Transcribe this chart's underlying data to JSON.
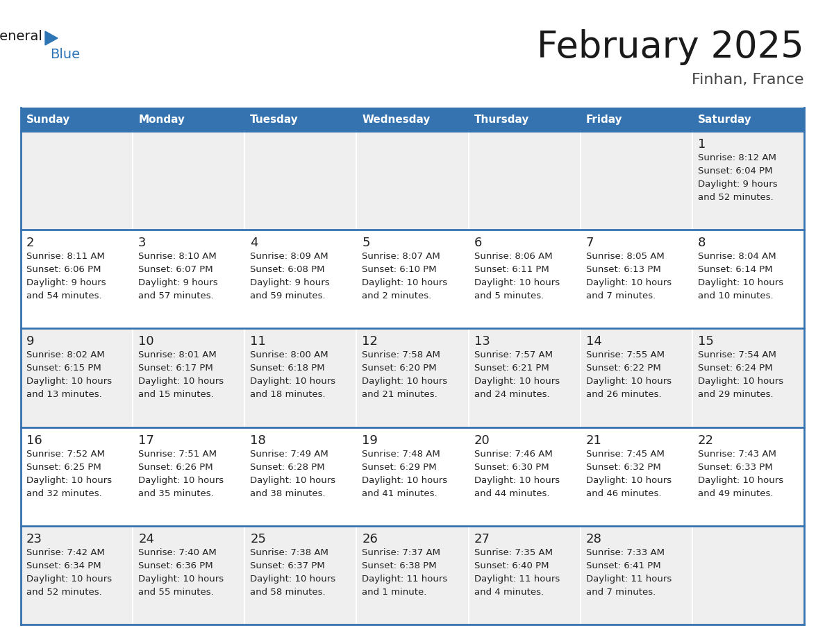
{
  "title": "February 2025",
  "subtitle": "Finhan, France",
  "days_of_week": [
    "Sunday",
    "Monday",
    "Tuesday",
    "Wednesday",
    "Thursday",
    "Friday",
    "Saturday"
  ],
  "header_bg": "#3572B0",
  "header_text_color": "#FFFFFF",
  "cell_bg_odd": "#EFEFEF",
  "cell_bg_even": "#FFFFFF",
  "separator_color": "#3572B0",
  "text_color": "#222222",
  "title_color": "#1a1a1a",
  "subtitle_color": "#444444",
  "logo_black": "#1a1a1a",
  "logo_blue": "#2E75B6",
  "weeks": [
    [
      {
        "day": null,
        "sunrise": null,
        "sunset": null,
        "daylight": null
      },
      {
        "day": null,
        "sunrise": null,
        "sunset": null,
        "daylight": null
      },
      {
        "day": null,
        "sunrise": null,
        "sunset": null,
        "daylight": null
      },
      {
        "day": null,
        "sunrise": null,
        "sunset": null,
        "daylight": null
      },
      {
        "day": null,
        "sunrise": null,
        "sunset": null,
        "daylight": null
      },
      {
        "day": null,
        "sunrise": null,
        "sunset": null,
        "daylight": null
      },
      {
        "day": 1,
        "sunrise": "8:12 AM",
        "sunset": "6:04 PM",
        "daylight": "9 hours\nand 52 minutes."
      }
    ],
    [
      {
        "day": 2,
        "sunrise": "8:11 AM",
        "sunset": "6:06 PM",
        "daylight": "9 hours\nand 54 minutes."
      },
      {
        "day": 3,
        "sunrise": "8:10 AM",
        "sunset": "6:07 PM",
        "daylight": "9 hours\nand 57 minutes."
      },
      {
        "day": 4,
        "sunrise": "8:09 AM",
        "sunset": "6:08 PM",
        "daylight": "9 hours\nand 59 minutes."
      },
      {
        "day": 5,
        "sunrise": "8:07 AM",
        "sunset": "6:10 PM",
        "daylight": "10 hours\nand 2 minutes."
      },
      {
        "day": 6,
        "sunrise": "8:06 AM",
        "sunset": "6:11 PM",
        "daylight": "10 hours\nand 5 minutes."
      },
      {
        "day": 7,
        "sunrise": "8:05 AM",
        "sunset": "6:13 PM",
        "daylight": "10 hours\nand 7 minutes."
      },
      {
        "day": 8,
        "sunrise": "8:04 AM",
        "sunset": "6:14 PM",
        "daylight": "10 hours\nand 10 minutes."
      }
    ],
    [
      {
        "day": 9,
        "sunrise": "8:02 AM",
        "sunset": "6:15 PM",
        "daylight": "10 hours\nand 13 minutes."
      },
      {
        "day": 10,
        "sunrise": "8:01 AM",
        "sunset": "6:17 PM",
        "daylight": "10 hours\nand 15 minutes."
      },
      {
        "day": 11,
        "sunrise": "8:00 AM",
        "sunset": "6:18 PM",
        "daylight": "10 hours\nand 18 minutes."
      },
      {
        "day": 12,
        "sunrise": "7:58 AM",
        "sunset": "6:20 PM",
        "daylight": "10 hours\nand 21 minutes."
      },
      {
        "day": 13,
        "sunrise": "7:57 AM",
        "sunset": "6:21 PM",
        "daylight": "10 hours\nand 24 minutes."
      },
      {
        "day": 14,
        "sunrise": "7:55 AM",
        "sunset": "6:22 PM",
        "daylight": "10 hours\nand 26 minutes."
      },
      {
        "day": 15,
        "sunrise": "7:54 AM",
        "sunset": "6:24 PM",
        "daylight": "10 hours\nand 29 minutes."
      }
    ],
    [
      {
        "day": 16,
        "sunrise": "7:52 AM",
        "sunset": "6:25 PM",
        "daylight": "10 hours\nand 32 minutes."
      },
      {
        "day": 17,
        "sunrise": "7:51 AM",
        "sunset": "6:26 PM",
        "daylight": "10 hours\nand 35 minutes."
      },
      {
        "day": 18,
        "sunrise": "7:49 AM",
        "sunset": "6:28 PM",
        "daylight": "10 hours\nand 38 minutes."
      },
      {
        "day": 19,
        "sunrise": "7:48 AM",
        "sunset": "6:29 PM",
        "daylight": "10 hours\nand 41 minutes."
      },
      {
        "day": 20,
        "sunrise": "7:46 AM",
        "sunset": "6:30 PM",
        "daylight": "10 hours\nand 44 minutes."
      },
      {
        "day": 21,
        "sunrise": "7:45 AM",
        "sunset": "6:32 PM",
        "daylight": "10 hours\nand 46 minutes."
      },
      {
        "day": 22,
        "sunrise": "7:43 AM",
        "sunset": "6:33 PM",
        "daylight": "10 hours\nand 49 minutes."
      }
    ],
    [
      {
        "day": 23,
        "sunrise": "7:42 AM",
        "sunset": "6:34 PM",
        "daylight": "10 hours\nand 52 minutes."
      },
      {
        "day": 24,
        "sunrise": "7:40 AM",
        "sunset": "6:36 PM",
        "daylight": "10 hours\nand 55 minutes."
      },
      {
        "day": 25,
        "sunrise": "7:38 AM",
        "sunset": "6:37 PM",
        "daylight": "10 hours\nand 58 minutes."
      },
      {
        "day": 26,
        "sunrise": "7:37 AM",
        "sunset": "6:38 PM",
        "daylight": "11 hours\nand 1 minute."
      },
      {
        "day": 27,
        "sunrise": "7:35 AM",
        "sunset": "6:40 PM",
        "daylight": "11 hours\nand 4 minutes."
      },
      {
        "day": 28,
        "sunrise": "7:33 AM",
        "sunset": "6:41 PM",
        "daylight": "11 hours\nand 7 minutes."
      },
      {
        "day": null,
        "sunrise": null,
        "sunset": null,
        "daylight": null
      }
    ]
  ]
}
